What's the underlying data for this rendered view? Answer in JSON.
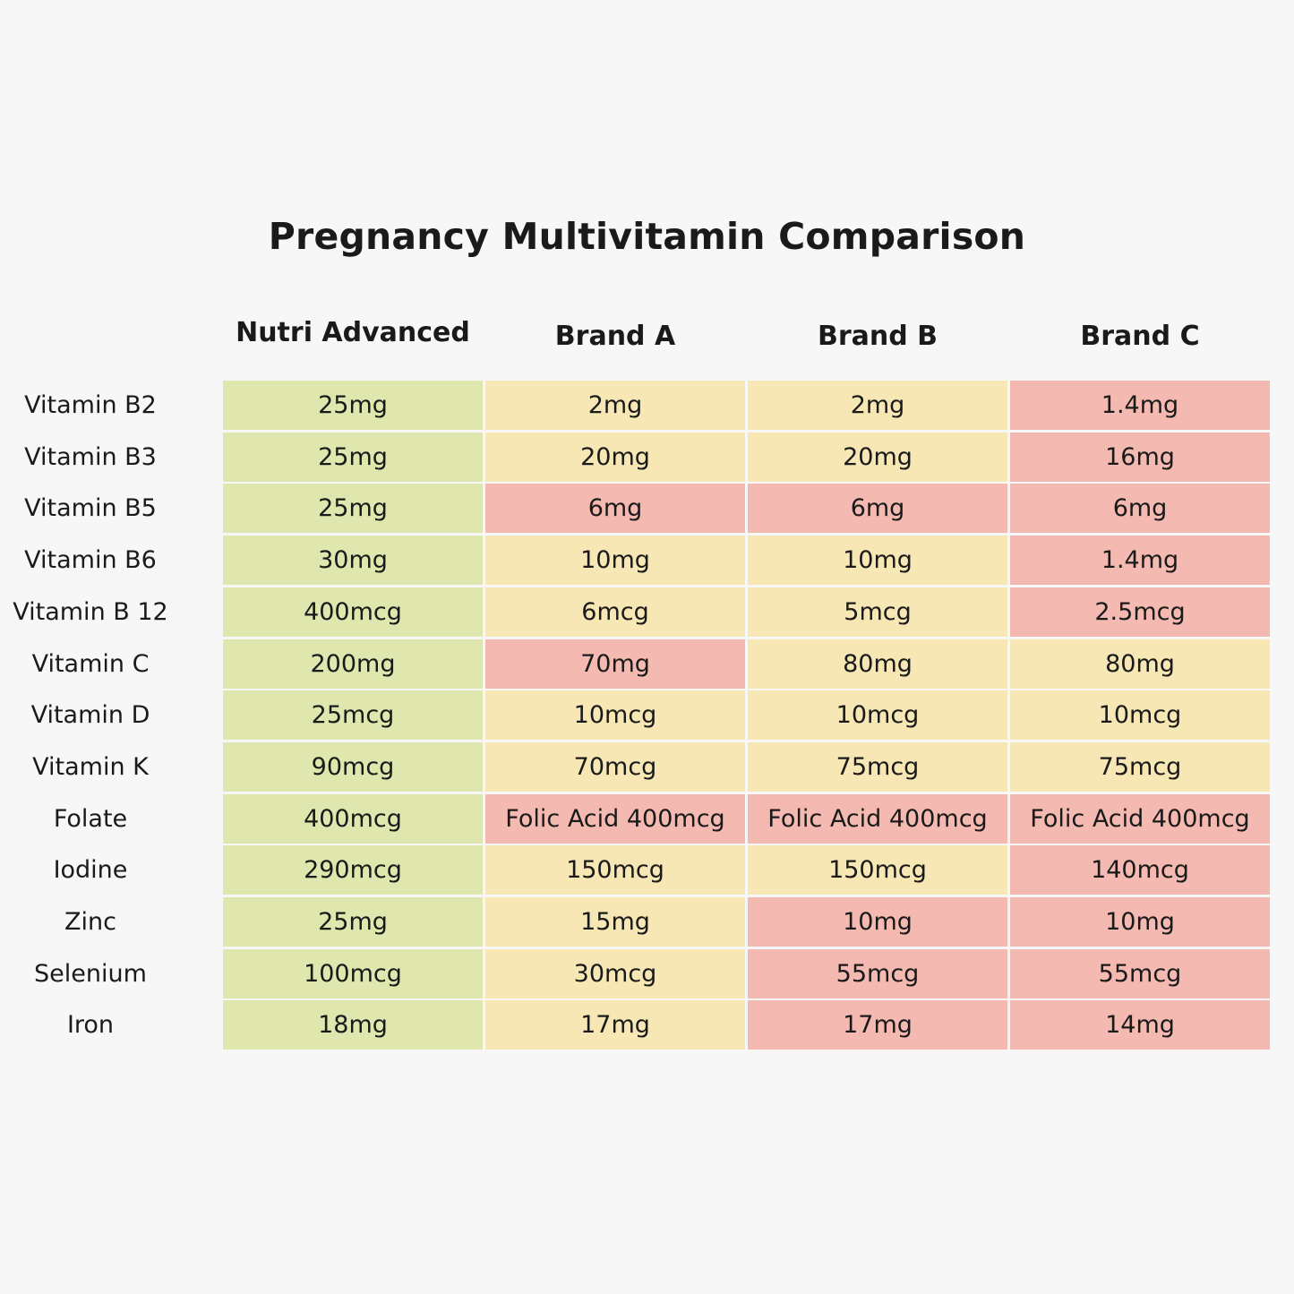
{
  "chart_data": {
    "type": "table",
    "title": "Pregnancy Multivitamin Comparison",
    "columns": [
      "Nutri Advanced",
      "Brand A",
      "Brand B",
      "Brand C"
    ],
    "rows": [
      {
        "label": "Vitamin B2",
        "values": [
          "25mg",
          "2mg",
          "2mg",
          "1.4mg"
        ],
        "levels": [
          "g",
          "y",
          "y",
          "r"
        ]
      },
      {
        "label": "Vitamin B3",
        "values": [
          "25mg",
          "20mg",
          "20mg",
          "16mg"
        ],
        "levels": [
          "g",
          "y",
          "y",
          "r"
        ]
      },
      {
        "label": "Vitamin B5",
        "values": [
          "25mg",
          "6mg",
          "6mg",
          "6mg"
        ],
        "levels": [
          "g",
          "r",
          "r",
          "r"
        ]
      },
      {
        "label": "Vitamin B6",
        "values": [
          "30mg",
          "10mg",
          "10mg",
          "1.4mg"
        ],
        "levels": [
          "g",
          "y",
          "y",
          "r"
        ]
      },
      {
        "label": "Vitamin B 12",
        "values": [
          "400mcg",
          "6mcg",
          "5mcg",
          "2.5mcg"
        ],
        "levels": [
          "g",
          "y",
          "y",
          "r"
        ]
      },
      {
        "label": "Vitamin C",
        "values": [
          "200mg",
          "70mg",
          "80mg",
          "80mg"
        ],
        "levels": [
          "g",
          "r",
          "y",
          "y"
        ]
      },
      {
        "label": "Vitamin D",
        "values": [
          "25mcg",
          "10mcg",
          "10mcg",
          "10mcg"
        ],
        "levels": [
          "g",
          "y",
          "y",
          "y"
        ]
      },
      {
        "label": "Vitamin K",
        "values": [
          "90mcg",
          "70mcg",
          "75mcg",
          "75mcg"
        ],
        "levels": [
          "g",
          "y",
          "y",
          "y"
        ]
      },
      {
        "label": "Folate",
        "values": [
          "400mcg",
          "Folic Acid 400mcg",
          "Folic Acid 400mcg",
          "Folic Acid 400mcg"
        ],
        "levels": [
          "g",
          "r",
          "r",
          "r"
        ]
      },
      {
        "label": "Iodine",
        "values": [
          "290mcg",
          "150mcg",
          "150mcg",
          "140mcg"
        ],
        "levels": [
          "g",
          "y",
          "y",
          "r"
        ]
      },
      {
        "label": "Zinc",
        "values": [
          "25mg",
          "15mg",
          "10mg",
          "10mg"
        ],
        "levels": [
          "g",
          "y",
          "r",
          "r"
        ]
      },
      {
        "label": "Selenium",
        "values": [
          "100mcg",
          "30mcg",
          "55mcg",
          "55mcg"
        ],
        "levels": [
          "g",
          "y",
          "r",
          "r"
        ]
      },
      {
        "label": "Iron",
        "values": [
          "18mg",
          "17mg",
          "17mg",
          "14mg"
        ],
        "levels": [
          "g",
          "y",
          "r",
          "r"
        ]
      }
    ],
    "level_colors": {
      "g": "#dfe7ae",
      "y": "#f6e7b4",
      "r": "#f4b9b0"
    }
  }
}
